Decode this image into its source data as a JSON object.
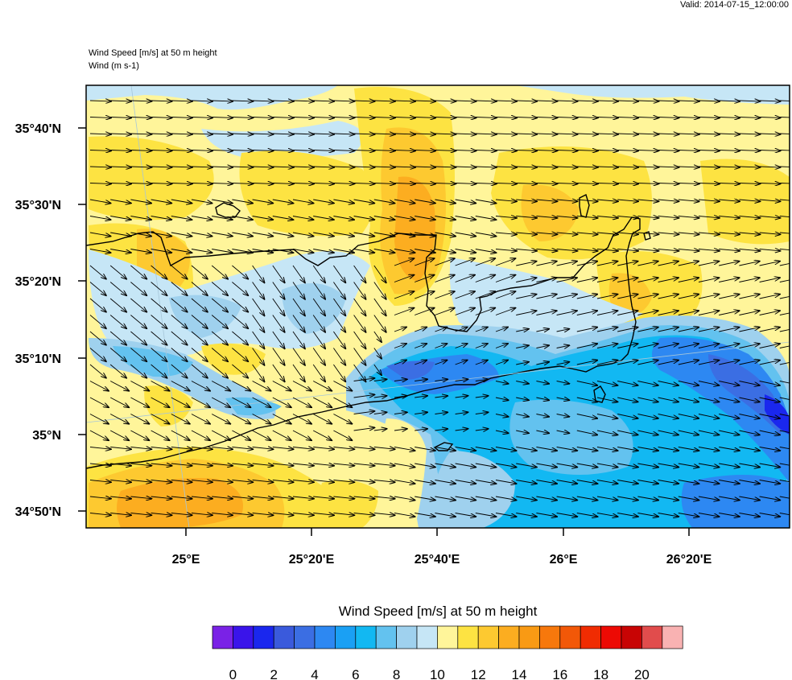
{
  "header": {
    "valid": "Valid: 2014-07-15_12:00:00",
    "field_title": "Wind Speed [m/s] at 50 m height",
    "vector_title": "Wind   (m s-1)"
  },
  "map": {
    "lat_labels": [
      "35°40'N",
      "35°30'N",
      "35°20'N",
      "35°10'N",
      "35°N",
      "34°50'N"
    ],
    "lon_labels": [
      "25°E",
      "25°20'E",
      "25°40'E",
      "26°E",
      "26°20'E"
    ]
  },
  "colorbar": {
    "title": "Wind Speed [m/s] at 50 m height",
    "labels": [
      "0",
      "2",
      "4",
      "6",
      "8",
      "10",
      "12",
      "14",
      "16",
      "18",
      "20"
    ],
    "colors": [
      "#7a22e6",
      "#3a14ea",
      "#1a27ee",
      "#3a5adc",
      "#3b6ee3",
      "#2d88f2",
      "#1aa0f4",
      "#12b8f2",
      "#63c2ef",
      "#9fd1ee",
      "#c6e6f6",
      "#fff59a",
      "#fde342",
      "#fdc930",
      "#fcad20",
      "#f99a14",
      "#f7780c",
      "#f25808",
      "#f02c02",
      "#ed0a04",
      "#c80404",
      "#e14c4c",
      "#f9b2b2"
    ]
  }
}
